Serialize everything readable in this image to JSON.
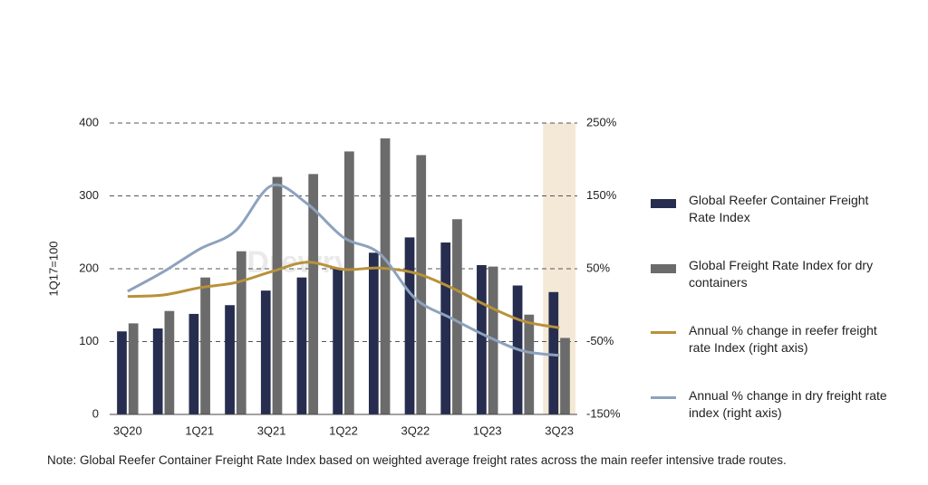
{
  "chart_data": {
    "type": "bar-line",
    "y_label": "1Q17=100",
    "watermark": "Drewry",
    "categories": [
      "3Q20",
      null,
      "1Q21",
      null,
      "3Q21",
      null,
      "1Q22",
      null,
      "3Q22",
      null,
      "1Q23",
      null,
      "3Q23"
    ],
    "highlight_category": 12,
    "series": [
      {
        "name": "Global Reefer Container Freight Rate Index",
        "color": "#262d4f",
        "kind": "bar",
        "values": [
          114,
          118,
          138,
          150,
          170,
          188,
          200,
          222,
          243,
          236,
          205,
          177,
          168
        ]
      },
      {
        "name": "Global Freight Rate Index for dry containers",
        "color": "#6b6b6b",
        "kind": "bar",
        "values": [
          125,
          142,
          188,
          224,
          326,
          330,
          361,
          379,
          356,
          268,
          203,
          137,
          105
        ]
      },
      {
        "name": "Annual % change in reefer freight rate Index (right axis)",
        "color": "#b8913a",
        "kind": "line",
        "axis": "y2",
        "values": [
          12,
          14,
          24,
          31,
          46,
          59,
          49,
          51,
          44,
          24,
          -1,
          -22,
          -31
        ]
      },
      {
        "name": "Annual % change in dry freight rate index (right axis)",
        "color": "#8da2bd",
        "kind": "line",
        "axis": "y2",
        "values": [
          19,
          46,
          77,
          102,
          164,
          139,
          93,
          71,
          9,
          -18,
          -43,
          -63,
          -69
        ]
      }
    ],
    "ylim": [
      0,
      400
    ],
    "yticks": [
      0,
      100,
      200,
      300,
      400
    ],
    "y2lim": [
      -150,
      250
    ],
    "y2ticks": [
      {
        "value": -150,
        "label": "-150%"
      },
      {
        "value": -50,
        "label": "-50%"
      },
      {
        "value": 50,
        "label": "50%"
      },
      {
        "value": 150,
        "label": "150%"
      },
      {
        "value": 250,
        "label": "250%"
      }
    ],
    "grid": true,
    "note": "Note: Global Reefer Container Freight Rate Index based on weighted average freight rates across the main reefer intensive trade routes."
  }
}
